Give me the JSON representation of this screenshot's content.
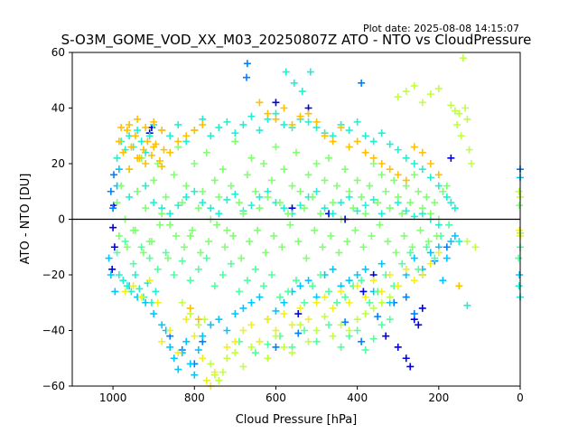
{
  "chart_data": {
    "type": "scatter",
    "plot_date_label": "Plot date: 2025-08-08 14:15:07",
    "title": "S-O3M_GOME_VOD_XX_M03_20250807Z ATO - NTO vs CloudPressure",
    "xlabel": "Cloud Pressure [hPa]",
    "ylabel": "ATO - NTO [DU]",
    "xlim": [
      1100,
      0
    ],
    "ylim": [
      -60,
      60
    ],
    "x_inverted": true,
    "xticks": [
      1000,
      800,
      600,
      400,
      200,
      0
    ],
    "yticks": [
      60,
      40,
      20,
      0,
      -20,
      -40,
      -60
    ],
    "xtick_labels": [
      "1000",
      "800",
      "600",
      "400",
      "200",
      "0"
    ],
    "ytick_labels": [
      "60",
      "40",
      "20",
      "0",
      "−20",
      "−40",
      "−60"
    ],
    "reference_line": {
      "y": 0,
      "color": "#000000"
    },
    "marker": "+",
    "grid": false,
    "legend": "none",
    "colors": [
      "#0000e0",
      "#0080ff",
      "#00c8ff",
      "#20f0d0",
      "#50ffa0",
      "#80ff70",
      "#c0ff40",
      "#f0f020",
      "#ffc000"
    ],
    "series": [
      {
        "color": "#0000e0",
        "x": [
          1000,
          996,
          1002,
          998,
          560,
          470,
          430,
          360,
          330,
          300,
          280,
          270,
          260,
          250,
          240,
          170,
          520,
          600,
          545,
          385,
          910,
          905
        ],
        "y": [
          -3,
          -10,
          -18,
          5,
          4,
          2,
          0,
          -20,
          -42,
          -46,
          -50,
          -53,
          -36,
          -38,
          -32,
          22,
          40,
          42,
          -34,
          -26,
          31,
          33
        ]
      },
      {
        "color": "#0080ff",
        "x": [
          670,
          672,
          390,
          860,
          830,
          800,
          780,
          600,
          545,
          430,
          390,
          350,
          310,
          280,
          260,
          240,
          1005,
          998,
          1000,
          0,
          210,
          180
        ],
        "y": [
          56,
          51,
          49,
          -42,
          -47,
          -52,
          -44,
          -46,
          -41,
          -37,
          -44,
          -35,
          -30,
          -28,
          -34,
          -20,
          10,
          16,
          4,
          18,
          -15,
          -10
        ]
      },
      {
        "color": "#00c8ff",
        "x": [
          870,
          860,
          850,
          840,
          830,
          820,
          810,
          800,
          790,
          780,
          760,
          740,
          720,
          700,
          680,
          660,
          640,
          620,
          600,
          580,
          560,
          540,
          520,
          500,
          480,
          460,
          440,
          420,
          400,
          380,
          360,
          340,
          320,
          300,
          280,
          260,
          240,
          220,
          200,
          190,
          180,
          170,
          160,
          1010,
          1005,
          995,
          990,
          985,
          0,
          2,
          960,
          940,
          920,
          900,
          880
        ],
        "y": [
          -40,
          -46,
          -50,
          -54,
          -48,
          -44,
          -52,
          -56,
          -47,
          -42,
          -38,
          -36,
          -40,
          -34,
          -32,
          -30,
          -28,
          -36,
          -33,
          -30,
          -26,
          -24,
          -22,
          -28,
          -20,
          -18,
          -24,
          -22,
          -20,
          -18,
          -26,
          -16,
          -30,
          -24,
          -20,
          -14,
          -18,
          -12,
          -10,
          -22,
          -14,
          -8,
          -6,
          -14,
          -20,
          -26,
          12,
          18,
          15,
          -20,
          -24,
          -28,
          -30,
          -34,
          -38
        ]
      },
      {
        "color": "#20f0d0",
        "x": [
          990,
          980,
          970,
          960,
          950,
          940,
          930,
          920,
          910,
          900,
          880,
          860,
          840,
          820,
          800,
          780,
          760,
          740,
          720,
          700,
          680,
          660,
          640,
          620,
          600,
          580,
          560,
          540,
          520,
          500,
          480,
          460,
          440,
          420,
          400,
          380,
          360,
          340,
          320,
          300,
          280,
          260,
          240,
          220,
          200,
          190,
          180,
          170,
          160,
          150,
          130,
          985,
          975,
          965,
          955,
          945,
          935,
          925,
          915,
          905,
          895,
          575,
          555,
          535,
          515,
          0,
          3,
          960,
          940,
          920,
          900,
          880,
          860,
          840,
          820,
          800,
          780,
          760,
          740,
          720,
          700,
          680,
          660,
          640,
          620,
          600,
          580,
          560,
          540,
          520,
          500,
          480,
          460,
          440,
          420,
          400,
          380,
          360,
          340,
          320,
          300,
          280,
          260,
          240,
          220,
          200
        ],
        "y": [
          22,
          28,
          25,
          30,
          26,
          32,
          28,
          24,
          30,
          34,
          32,
          30,
          34,
          28,
          32,
          36,
          30,
          33,
          35,
          31,
          34,
          37,
          32,
          36,
          38,
          34,
          33,
          36,
          35,
          33,
          31,
          30,
          34,
          32,
          35,
          30,
          28,
          31,
          27,
          25,
          22,
          20,
          18,
          15,
          12,
          10,
          8,
          6,
          4,
          -8,
          -31,
          -20,
          -22,
          -24,
          -26,
          -20,
          -25,
          -28,
          -23,
          -30,
          -26,
          53,
          49,
          46,
          53,
          -28,
          -24,
          8,
          10,
          12,
          6,
          4,
          2,
          5,
          8,
          10,
          6,
          4,
          2,
          7,
          9,
          3,
          5,
          8,
          10,
          6,
          4,
          2,
          5,
          8,
          10,
          4,
          2,
          6,
          8,
          3,
          5,
          7,
          2,
          4,
          6,
          3,
          1,
          2,
          0,
          -2
        ]
      },
      {
        "color": "#50ffa0",
        "x": [
          990,
          970,
          950,
          930,
          910,
          890,
          870,
          850,
          830,
          810,
          790,
          770,
          750,
          730,
          710,
          690,
          670,
          650,
          630,
          610,
          590,
          570,
          550,
          530,
          510,
          490,
          470,
          450,
          430,
          410,
          390,
          370,
          350,
          330,
          310,
          290,
          270,
          250,
          230,
          210,
          195,
          175,
          0,
          4,
          690,
          650,
          620,
          590,
          560,
          530,
          500,
          470,
          440,
          420,
          400,
          380,
          360,
          340,
          320
        ],
        "y": [
          -12,
          -8,
          -16,
          -10,
          -14,
          -18,
          -12,
          -20,
          -15,
          -22,
          -18,
          -14,
          -24,
          -20,
          -16,
          -26,
          -22,
          -18,
          -24,
          -20,
          -28,
          -26,
          -22,
          -30,
          -24,
          -20,
          -26,
          -30,
          -28,
          -24,
          -22,
          -30,
          -26,
          -20,
          -24,
          -16,
          -12,
          -18,
          -10,
          -14,
          -6,
          -2,
          -10,
          -14,
          -44,
          -48,
          -45,
          -42,
          -46,
          -40,
          -44,
          -38,
          -46,
          -42,
          -40,
          -47,
          -43,
          -38,
          -36
        ]
      },
      {
        "color": "#80ff70",
        "x": [
          990,
          980,
          970,
          960,
          950,
          940,
          930,
          920,
          910,
          900,
          890,
          880,
          870,
          860,
          850,
          840,
          830,
          820,
          810,
          800,
          790,
          780,
          770,
          760,
          750,
          740,
          730,
          720,
          710,
          700,
          690,
          680,
          670,
          660,
          650,
          640,
          630,
          620,
          610,
          600,
          590,
          580,
          570,
          560,
          550,
          540,
          530,
          520,
          510,
          500,
          490,
          480,
          470,
          460,
          450,
          440,
          430,
          420,
          410,
          400,
          390,
          380,
          370,
          360,
          350,
          340,
          330,
          320,
          310,
          300,
          290,
          280,
          270,
          260,
          250,
          240,
          230,
          220,
          210,
          200,
          190,
          180,
          0,
          2,
          985,
          965,
          945,
          925,
          905,
          885,
          865,
          845,
          825,
          805,
          785,
          765,
          745,
          725,
          705,
          685,
          665,
          645,
          625,
          605,
          585,
          565,
          545,
          525,
          505,
          485,
          465,
          445,
          425,
          405,
          385,
          365,
          345,
          325,
          305,
          285,
          265,
          245,
          225,
          205
        ],
        "y": [
          6,
          12,
          0,
          18,
          -4,
          10,
          22,
          4,
          -8,
          14,
          20,
          2,
          8,
          -2,
          16,
          26,
          6,
          12,
          -6,
          20,
          4,
          10,
          24,
          0,
          14,
          8,
          18,
          -4,
          12,
          28,
          6,
          2,
          16,
          22,
          10,
          4,
          20,
          8,
          14,
          26,
          6,
          18,
          2,
          12,
          24,
          10,
          4,
          16,
          8,
          20,
          2,
          14,
          22,
          6,
          12,
          0,
          18,
          10,
          4,
          14,
          8,
          2,
          12,
          20,
          6,
          16,
          10,
          4,
          14,
          8,
          2,
          12,
          6,
          16,
          10,
          4,
          8,
          2,
          6,
          0,
          10,
          12,
          -5,
          5,
          -6,
          -10,
          -4,
          -12,
          -8,
          -2,
          -14,
          -6,
          -10,
          -4,
          -12,
          -8,
          -2,
          -10,
          -6,
          -14,
          -8,
          -4,
          -12,
          -6,
          -10,
          -2,
          -8,
          -14,
          -4,
          -10,
          -6,
          -12,
          -8,
          -4,
          -10,
          -6,
          -2,
          -8,
          -12,
          -6,
          -10,
          -4,
          -8,
          -6
        ]
      },
      {
        "color": "#c0ff40",
        "x": [
          140,
          135,
          130,
          150,
          155,
          125,
          120,
          145,
          300,
          280,
          260,
          240,
          220,
          200,
          170,
          160,
          760,
          750,
          740,
          730,
          720,
          700,
          680,
          660,
          640,
          620,
          600,
          580,
          560,
          540,
          520,
          500,
          480,
          460,
          440,
          420,
          400,
          380,
          360,
          340,
          320,
          830,
          810,
          790,
          775,
          0,
          3,
          130,
          110
        ],
        "y": [
          58,
          40,
          36,
          38,
          34,
          25,
          20,
          30,
          44,
          46,
          48,
          42,
          45,
          47,
          41,
          39,
          -52,
          -56,
          -58,
          -55,
          -50,
          -48,
          -53,
          -46,
          -44,
          -50,
          -42,
          -46,
          -48,
          -38,
          -44,
          -40,
          -35,
          -42,
          -38,
          -40,
          -36,
          -34,
          -32,
          -30,
          -28,
          -30,
          -34,
          -38,
          -36,
          8,
          10,
          -8,
          -10
        ]
      },
      {
        "color": "#f0f020",
        "x": [
          880,
          860,
          840,
          820,
          800,
          780,
          770,
          760,
          750,
          720,
          700,
          680,
          660,
          640,
          620,
          600,
          580,
          560,
          540,
          520,
          500,
          480,
          460,
          440,
          420,
          400,
          380,
          360,
          340,
          320,
          300,
          280,
          260,
          240,
          220,
          200,
          970,
          950,
          930,
          910,
          890,
          0,
          2
        ],
        "y": [
          -44,
          -40,
          -48,
          -36,
          -42,
          -50,
          -58,
          -60,
          -55,
          -46,
          -44,
          -40,
          -38,
          -44,
          -36,
          -40,
          -34,
          -38,
          -32,
          -36,
          -30,
          -28,
          -32,
          -26,
          -30,
          -24,
          -28,
          -22,
          -26,
          -20,
          -24,
          -18,
          -22,
          -20,
          -16,
          -12,
          -26,
          -24,
          -28,
          -22,
          -30,
          -6,
          -4
        ]
      },
      {
        "color": "#ffc000",
        "x": [
          985,
          975,
          965,
          955,
          945,
          935,
          925,
          915,
          905,
          895,
          885,
          875,
          980,
          960,
          940,
          920,
          900,
          880,
          960,
          940,
          920,
          900,
          880,
          860,
          840,
          820,
          800,
          780,
          640,
          620,
          600,
          580,
          560,
          540,
          520,
          500,
          480,
          460,
          440,
          420,
          400,
          380,
          360,
          340,
          320,
          300,
          280,
          260,
          240,
          220,
          200,
          150,
          810,
          790
        ],
        "y": [
          28,
          24,
          32,
          26,
          30,
          22,
          25,
          28,
          23,
          27,
          21,
          25,
          33,
          34,
          36,
          33,
          35,
          32,
          18,
          22,
          20,
          26,
          19,
          24,
          28,
          30,
          32,
          34,
          42,
          38,
          36,
          40,
          34,
          37,
          38,
          35,
          30,
          28,
          33,
          26,
          28,
          24,
          22,
          20,
          18,
          16,
          14,
          26,
          24,
          20,
          16,
          -24,
          -32,
          -36
        ]
      }
    ]
  }
}
